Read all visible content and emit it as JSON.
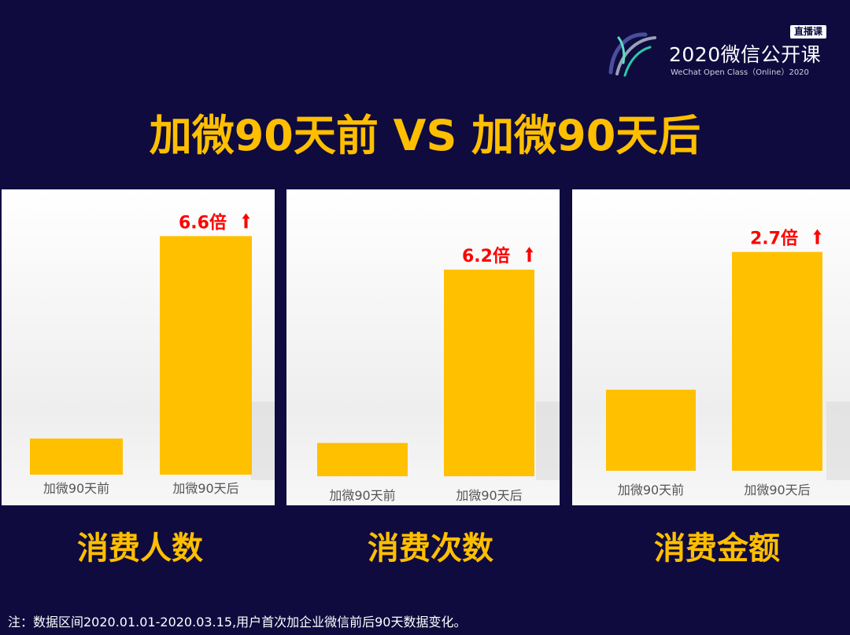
{
  "logo": {
    "badge": "直播课",
    "title": "2020微信公开课",
    "subtitle": "WeChat Open Class（Online）2020"
  },
  "headline": "加微90天前 VS 加微90天后",
  "chart_data": [
    {
      "type": "bar",
      "title": "消费人数",
      "categories": [
        "加微90天前",
        "加微90天后"
      ],
      "values": [
        1,
        6.6
      ],
      "annotation": "6.6倍",
      "ylim": [
        0,
        7.5
      ],
      "color": "#ffc000"
    },
    {
      "type": "bar",
      "title": "消费次数",
      "categories": [
        "加微90天前",
        "加微90天后"
      ],
      "values": [
        1,
        6.2
      ],
      "annotation": "6.2倍",
      "ylim": [
        0,
        7.5
      ],
      "color": "#ffc000"
    },
    {
      "type": "bar",
      "title": "消费金额",
      "categories": [
        "加微90天前",
        "加微90天后"
      ],
      "values": [
        1,
        2.7
      ],
      "annotation": "2.7倍",
      "ylim": [
        0,
        3.2
      ],
      "color": "#ffc000"
    }
  ],
  "note": "注：数据区间2020.01.01-2020.03.15,用户首次加企业微信前后90天数据变化。",
  "colors": {
    "background": "#0f0b3f",
    "accent": "#ffbf00",
    "bar": "#ffc000",
    "arrow": "#ff0000"
  }
}
